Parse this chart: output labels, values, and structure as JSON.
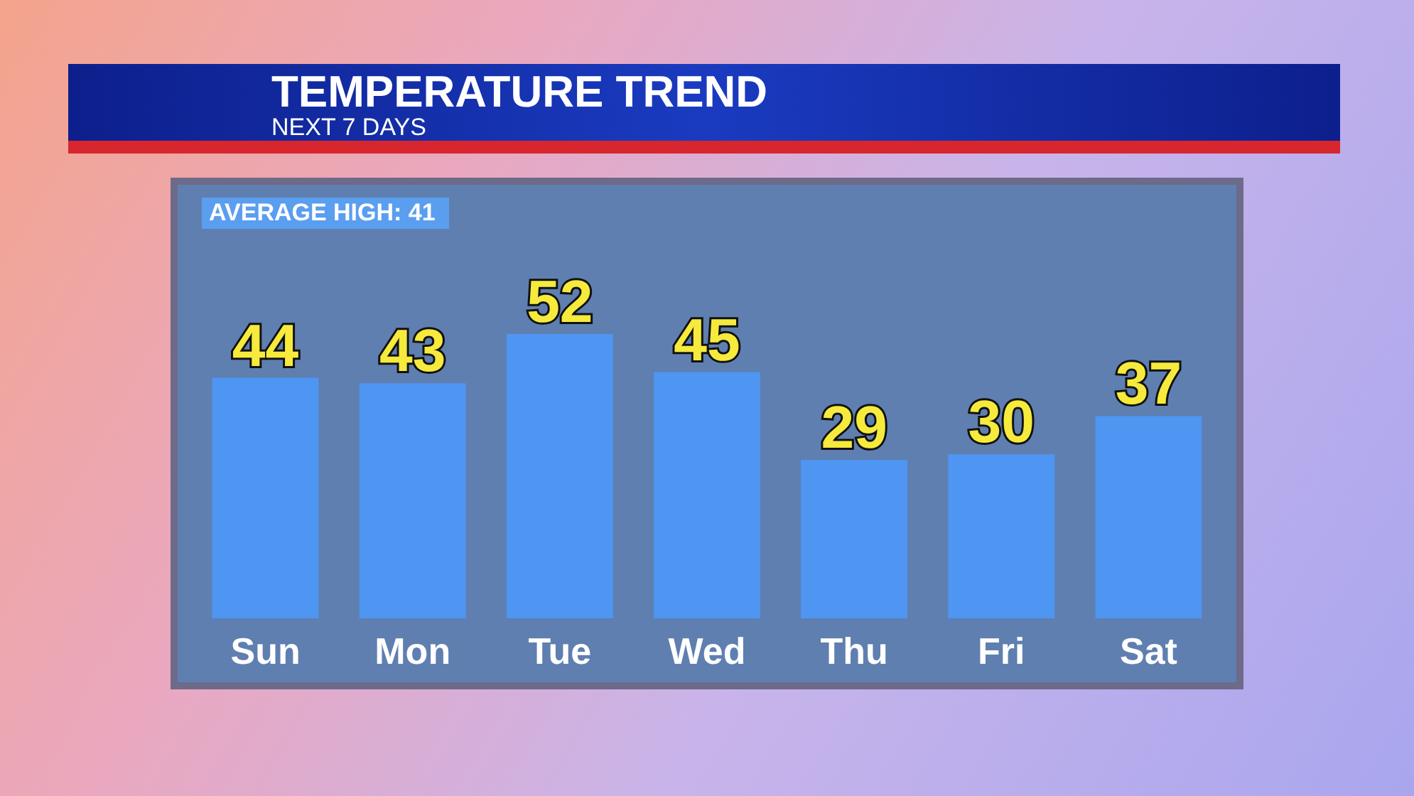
{
  "chart_data": {
    "type": "bar",
    "title": "TEMPERATURE TREND",
    "subtitle": "NEXT 7 DAYS",
    "annotations": [
      "AVERAGE HIGH: 41"
    ],
    "categories": [
      "Sun",
      "Mon",
      "Tue",
      "Wed",
      "Thu",
      "Fri",
      "Sat"
    ],
    "values": [
      44,
      43,
      52,
      45,
      29,
      30,
      37
    ],
    "color": "#4f95f2",
    "tick_labels": "x",
    "data_labels": true
  }
}
